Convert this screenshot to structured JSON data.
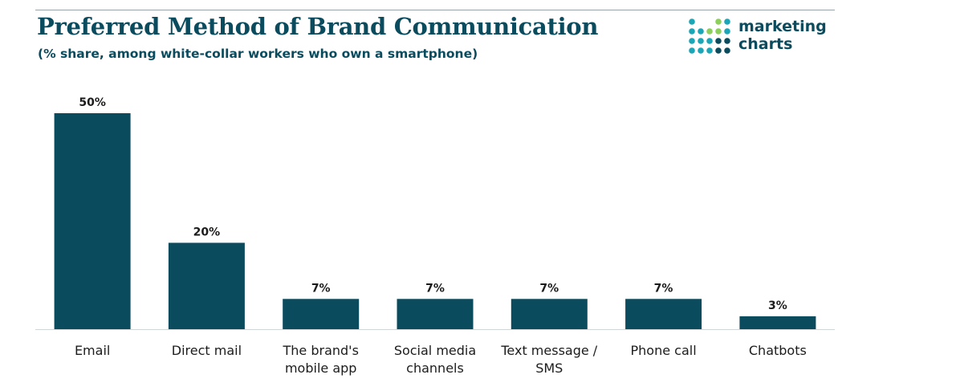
{
  "header": {
    "title": "Preferred Method of Brand Communication",
    "subtitle": "(% share, among white-collar workers who own a smartphone)"
  },
  "logo": {
    "line1": "marketing",
    "line2": "charts",
    "dot_colors": [
      "#1aa6b7",
      "#0b4b5e",
      "#8ccf5a"
    ]
  },
  "colors": {
    "bar": "#0b4b5e",
    "title": "#0b4b5e",
    "axis": "#d0d5d8"
  },
  "chart_data": {
    "type": "bar",
    "title": "Preferred Method of Brand Communication",
    "subtitle": "(% share, among white-collar workers who own a smartphone)",
    "xlabel": "",
    "ylabel": "",
    "ylim": [
      0,
      50
    ],
    "grid": false,
    "legend": "none",
    "categories": [
      [
        "Email"
      ],
      [
        "Direct mail"
      ],
      [
        "The brand's",
        "mobile app"
      ],
      [
        "Social media",
        "channels"
      ],
      [
        "Text message /",
        "SMS"
      ],
      [
        "Phone call"
      ],
      [
        "Chatbots"
      ]
    ],
    "values": [
      50,
      20,
      7,
      7,
      7,
      7,
      3
    ],
    "value_labels": [
      "50%",
      "20%",
      "7%",
      "7%",
      "7%",
      "7%",
      "3%"
    ]
  }
}
